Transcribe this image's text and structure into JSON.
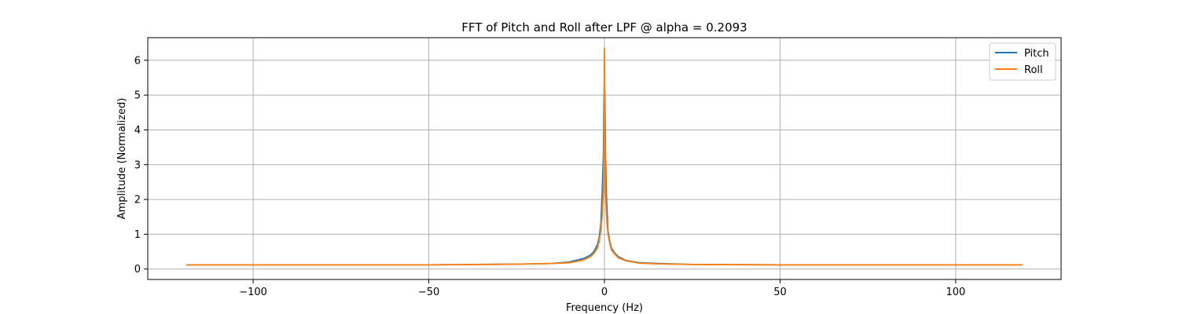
{
  "chart_data": {
    "type": "line",
    "title": "FFT of Pitch and Roll after LPF @ alpha = 0.2093",
    "xlabel": "Frequency (Hz)",
    "ylabel": "Amplitude (Normalized)",
    "xlim": [
      -130,
      130
    ],
    "ylim": [
      -0.3,
      6.65
    ],
    "xticks": [
      -100,
      -50,
      0,
      50,
      100
    ],
    "xtick_labels": [
      "−100",
      "−50",
      "0",
      "50",
      "100"
    ],
    "yticks": [
      0,
      1,
      2,
      3,
      4,
      5,
      6
    ],
    "ytick_labels": [
      "0",
      "1",
      "2",
      "3",
      "4",
      "5",
      "6"
    ],
    "grid": true,
    "legend_position": "top-right",
    "series": [
      {
        "name": "Pitch",
        "color": "#1f77b4",
        "x": [
          -119,
          -100,
          -75,
          -50,
          -25,
          -15,
          -10,
          -6,
          -4,
          -3,
          -2,
          -1.5,
          -1,
          -0.6,
          -0.3,
          -0.15,
          0,
          0.15,
          0.3,
          0.6,
          1,
          1.5,
          2,
          3,
          4,
          6,
          10,
          15,
          25,
          50,
          75,
          100,
          119
        ],
        "y": [
          0.12,
          0.12,
          0.12,
          0.12,
          0.14,
          0.16,
          0.2,
          0.3,
          0.4,
          0.5,
          0.7,
          0.9,
          1.3,
          2.3,
          3.3,
          4.8,
          5.4,
          4.8,
          3.3,
          2.0,
          1.1,
          0.8,
          0.6,
          0.45,
          0.35,
          0.25,
          0.18,
          0.16,
          0.13,
          0.12,
          0.12,
          0.12,
          0.12
        ]
      },
      {
        "name": "Roll",
        "color": "#ff7f0e",
        "x": [
          -119,
          -100,
          -75,
          -50,
          -25,
          -15,
          -10,
          -6,
          -4,
          -3,
          -2,
          -1.5,
          -1,
          -0.6,
          -0.3,
          -0.15,
          0,
          0.15,
          0.3,
          0.6,
          1,
          1.5,
          2,
          3,
          4,
          6,
          10,
          15,
          25,
          50,
          75,
          100,
          119
        ],
        "y": [
          0.12,
          0.12,
          0.12,
          0.12,
          0.14,
          0.16,
          0.18,
          0.26,
          0.35,
          0.45,
          0.6,
          0.8,
          1.1,
          1.6,
          2.3,
          3.5,
          6.35,
          3.5,
          2.2,
          1.5,
          1.0,
          0.75,
          0.55,
          0.42,
          0.32,
          0.24,
          0.17,
          0.15,
          0.13,
          0.12,
          0.12,
          0.12,
          0.12
        ]
      }
    ]
  }
}
